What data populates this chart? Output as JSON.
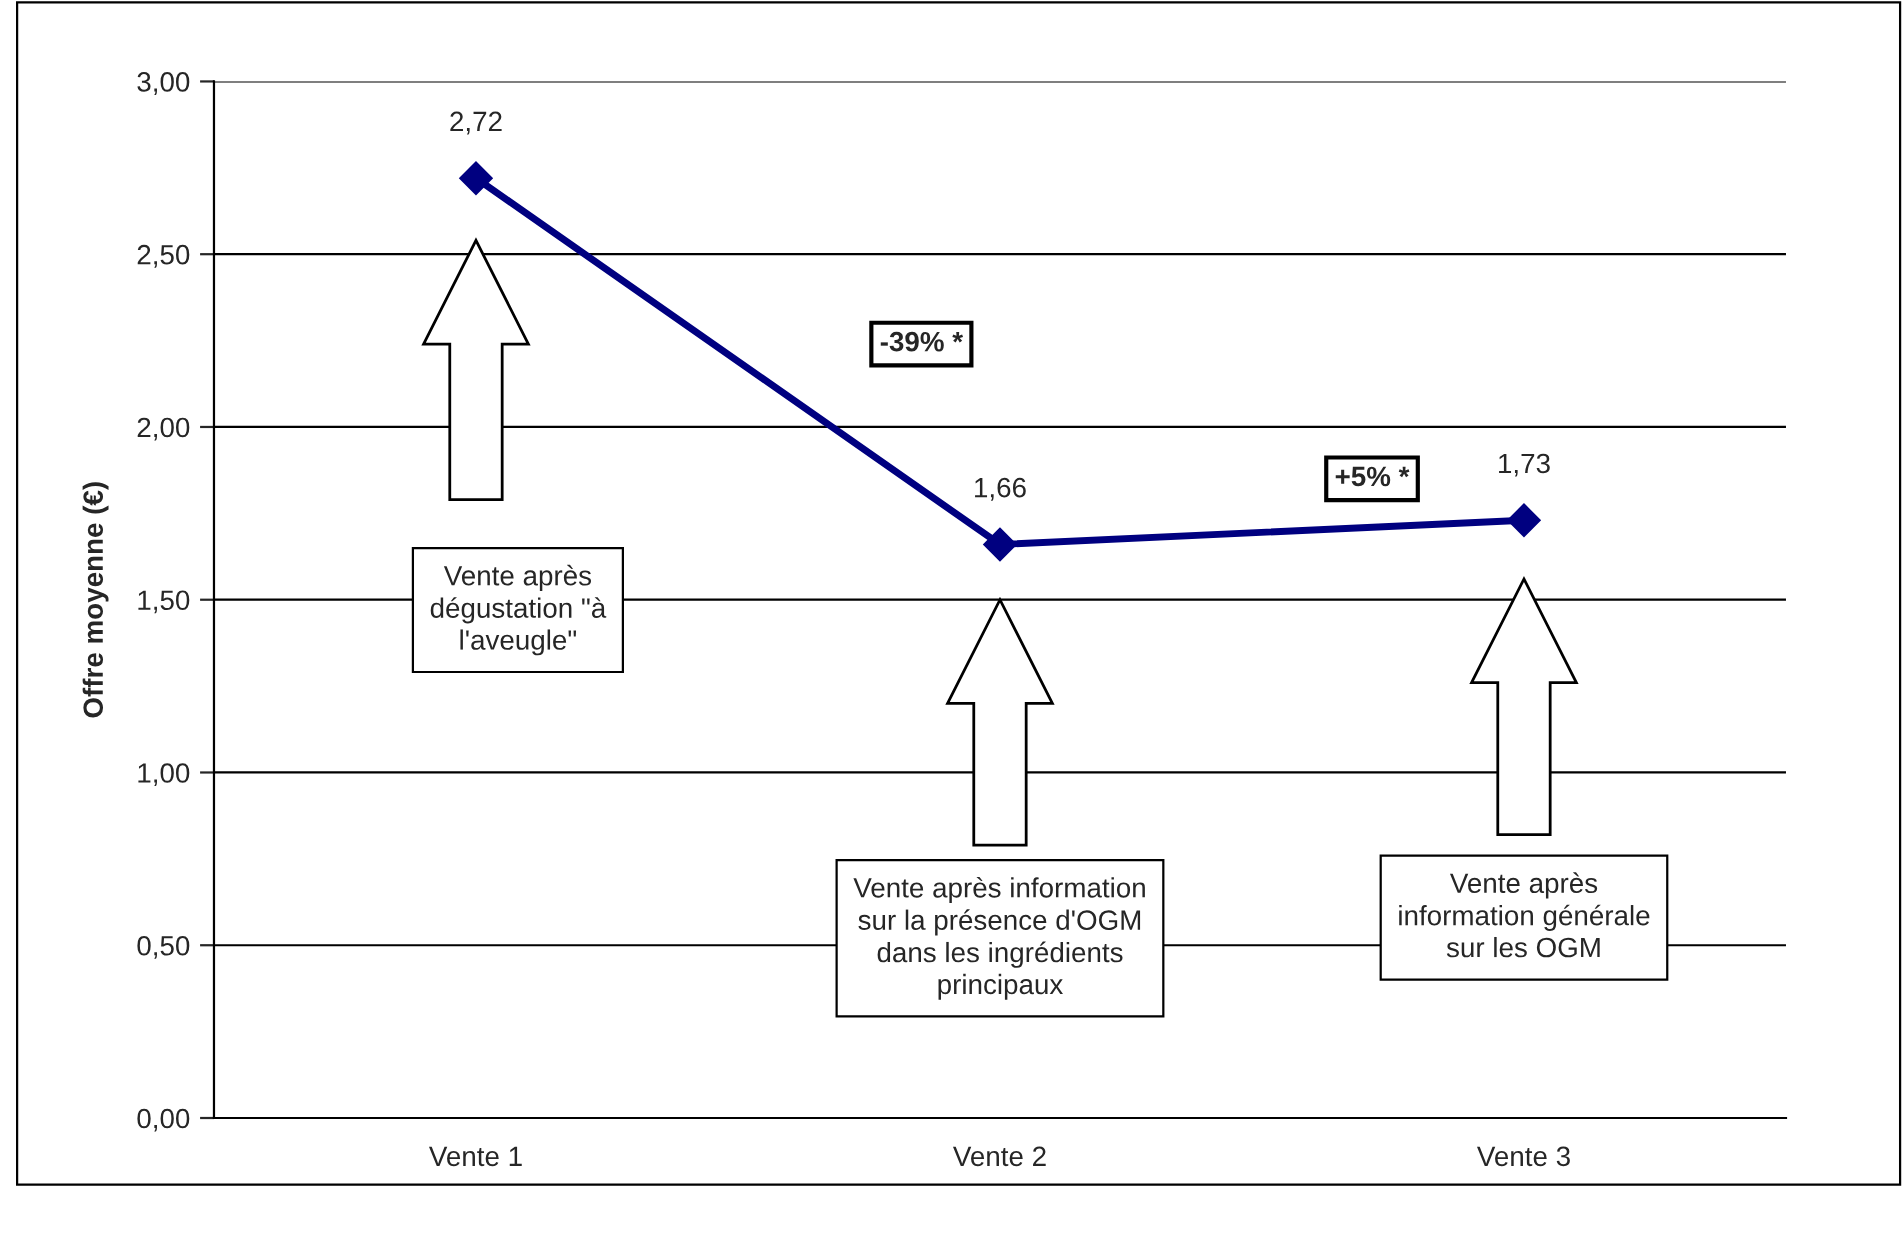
{
  "chart_data": {
    "type": "line",
    "ylabel": "Offre moyenne (€)",
    "categories": [
      "Vente 1",
      "Vente 2",
      "Vente 3"
    ],
    "series": [
      {
        "color": "#000080",
        "values": [
          2.72,
          1.66,
          1.73
        ]
      }
    ],
    "value_labels": [
      "2,72",
      "1,66",
      "1,73"
    ],
    "ylim": [
      0,
      3
    ],
    "yticks": [
      {
        "value": 0,
        "label": "0,00"
      },
      {
        "value": 0.5,
        "label": "0,50"
      },
      {
        "value": 1,
        "label": "1,00"
      },
      {
        "value": 1.5,
        "label": "1,50"
      },
      {
        "value": 2,
        "label": "2,00"
      },
      {
        "value": 2.5,
        "label": "2,50"
      },
      {
        "value": 3,
        "label": "3,00"
      }
    ],
    "grid": "y",
    "marker": "diamond",
    "line_style": "solid",
    "legend": false,
    "annotations": [
      "Vente après\ndégustation \"à\nl'aveugle\"",
      "Vente après information\nsur la présence d'OGM\ndans les ingrédients\nprincipaux",
      "Vente après\ninformation générale\nsur les OGM",
      "-39% *",
      "+5% *"
    ]
  }
}
